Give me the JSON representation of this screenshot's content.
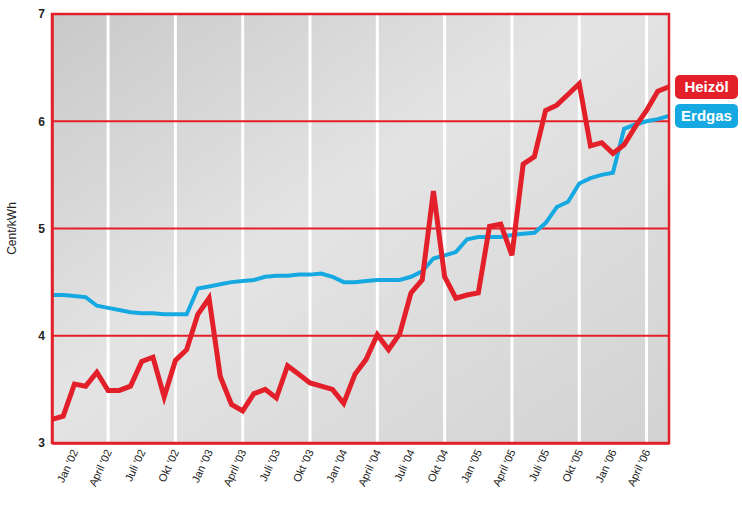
{
  "chart_data": {
    "type": "line",
    "y_label": "Cent/kWh",
    "categories": [
      null,
      null,
      "Jan '02",
      null,
      null,
      "April '02",
      null,
      null,
      "Juli '02",
      null,
      null,
      "Okt '02",
      null,
      null,
      "Jan '03",
      null,
      null,
      "April '03",
      null,
      null,
      "Juli '03",
      null,
      null,
      "Okt '03",
      null,
      null,
      "Jan '04",
      null,
      null,
      "April '04",
      null,
      null,
      "Juli '04",
      null,
      null,
      "Okt '04",
      null,
      null,
      "Jan '05",
      null,
      null,
      "April '05",
      null,
      null,
      "Juli '05",
      null,
      null,
      "Okt '05",
      null,
      null,
      "Jan '06",
      null,
      null,
      "April '06",
      null,
      null
    ],
    "series": [
      {
        "name": "Heizöl",
        "color": "#e3202a",
        "values": [
          3.22,
          3.25,
          3.55,
          3.53,
          3.66,
          3.49,
          3.49,
          3.53,
          3.76,
          3.8,
          3.43,
          3.77,
          3.87,
          4.2,
          4.35,
          3.62,
          3.36,
          3.3,
          3.46,
          3.5,
          3.42,
          3.72,
          3.64,
          3.56,
          3.53,
          3.5,
          3.37,
          3.64,
          3.78,
          4.01,
          3.87,
          4.02,
          4.4,
          4.52,
          5.35,
          4.55,
          4.35,
          4.38,
          4.4,
          5.02,
          5.04,
          4.75,
          5.6,
          5.67,
          6.1,
          6.15,
          6.25,
          6.35,
          5.77,
          5.8,
          5.7,
          5.78,
          5.95,
          6.1,
          6.28,
          6.32
        ]
      },
      {
        "name": "Erdgas",
        "color": "#16a9e1",
        "values": [
          4.38,
          4.38,
          4.37,
          4.36,
          4.28,
          4.26,
          4.24,
          4.22,
          4.21,
          4.21,
          4.2,
          4.2,
          4.2,
          4.44,
          4.46,
          4.48,
          4.5,
          4.51,
          4.52,
          4.55,
          4.56,
          4.56,
          4.57,
          4.57,
          4.58,
          4.55,
          4.5,
          4.5,
          4.51,
          4.52,
          4.52,
          4.52,
          4.55,
          4.6,
          4.72,
          4.75,
          4.78,
          4.9,
          4.92,
          4.92,
          4.92,
          4.94,
          4.95,
          4.96,
          5.05,
          5.2,
          5.25,
          5.42,
          5.47,
          5.5,
          5.52,
          5.93,
          5.97,
          6.0,
          6.02,
          6.05
        ]
      }
    ],
    "ylim": [
      3,
      7
    ],
    "yticks": [
      3,
      4,
      5,
      6,
      7
    ],
    "grid": true,
    "legend": "right"
  }
}
